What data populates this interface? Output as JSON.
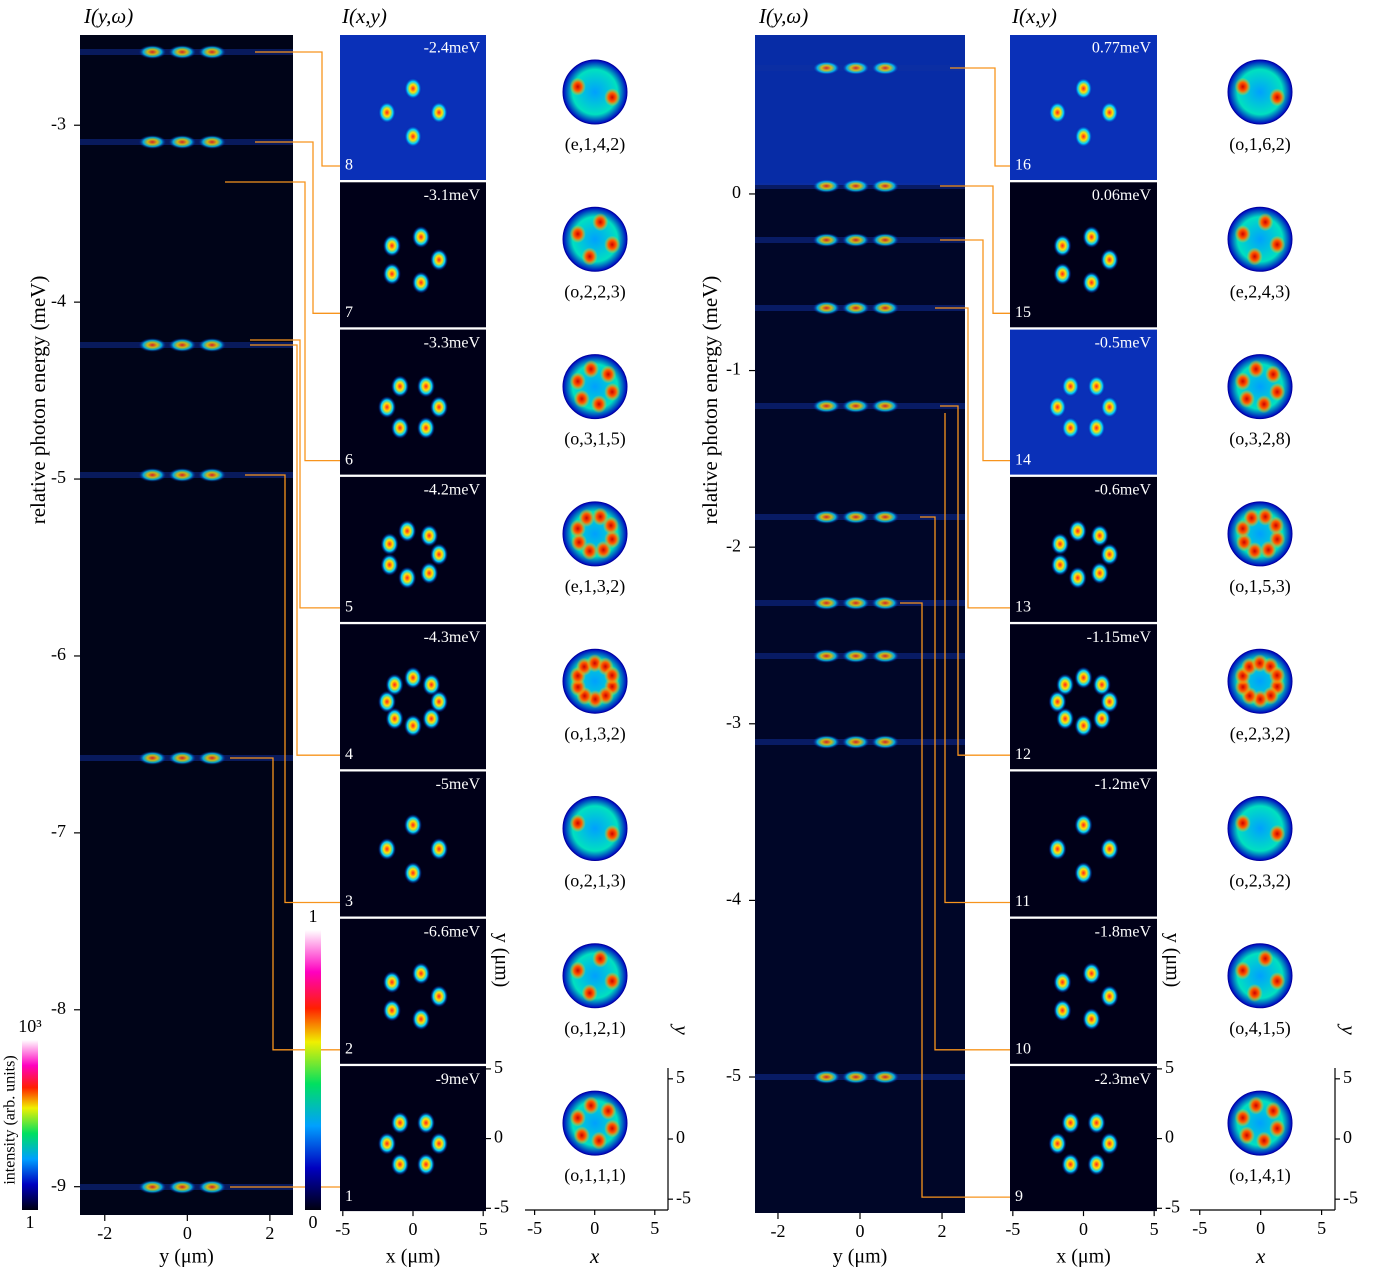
{
  "groups": [
    {
      "spectrum_title": "I(y,ω)",
      "image_title": "I(x,y)",
      "y_label": "relative photon energy (meV)",
      "ylim": [
        -9.16,
        -2.49
      ],
      "yticks": [
        -3,
        -4,
        -5,
        -6,
        -7,
        -8,
        -9
      ],
      "x_label": "y (μm)",
      "xlim": [
        -2.6,
        2.56
      ],
      "xticks": [
        -2,
        0,
        2
      ],
      "image_x_label": "x (μm)",
      "image_xlim": [
        -5.2,
        5.2
      ],
      "image_xticks": [
        -5,
        0,
        5
      ],
      "image_y_label": "y (μm)",
      "image_ylim": [
        -5.2,
        5.2
      ],
      "image_yticks": [
        5,
        0,
        -5
      ],
      "model_x_label": "x",
      "model_xlim": [
        -5.8,
        6.1
      ],
      "model_xticks": [
        -5,
        0,
        5
      ],
      "model_y_label": "y",
      "model_ylim": [
        -5.9,
        5.9
      ],
      "model_yticks": [
        5,
        0,
        -5
      ],
      "modes": [
        {
          "number": "8",
          "energy": "-2.4meV",
          "state": "(e,1,4,2)"
        },
        {
          "number": "7",
          "energy": "-3.1meV",
          "state": "(o,2,2,3)"
        },
        {
          "number": "6",
          "energy": "-3.3meV",
          "state": "(o,3,1,5)"
        },
        {
          "number": "5",
          "energy": "-4.2meV",
          "state": "(e,1,3,2)"
        },
        {
          "number": "4",
          "energy": "-4.3meV",
          "state": "(o,1,3,2)"
        },
        {
          "number": "3",
          "energy": "-5meV",
          "state": "(o,2,1,3)"
        },
        {
          "number": "2",
          "energy": "-6.6meV",
          "state": "(o,1,2,1)"
        },
        {
          "number": "1",
          "energy": "-9meV",
          "state": "(o,1,1,1)"
        }
      ]
    },
    {
      "spectrum_title": "I(y,ω)",
      "image_title": "I(x,y)",
      "y_label": "relative photon energy (meV)",
      "ylim": [
        -5.77,
        0.9
      ],
      "yticks": [
        0,
        -1,
        -2,
        -3,
        -4,
        -5
      ],
      "x_label": "y (μm)",
      "xlim": [
        -2.56,
        2.56
      ],
      "xticks": [
        -2,
        0,
        2
      ],
      "image_x_label": "x (μm)",
      "image_xlim": [
        -5.2,
        5.2
      ],
      "image_xticks": [
        -5,
        0,
        5
      ],
      "image_y_label": "y (μm)",
      "image_ylim": [
        -5.2,
        5.2
      ],
      "image_yticks": [
        5,
        0,
        -5
      ],
      "model_x_label": "x",
      "model_xlim": [
        -5.8,
        6.1
      ],
      "model_xticks": [
        -5,
        0,
        5
      ],
      "model_y_label": "y",
      "model_ylim": [
        -5.9,
        5.9
      ],
      "model_yticks": [
        5,
        0,
        -5
      ],
      "modes": [
        {
          "number": "16",
          "energy": "0.77meV",
          "state": "(o,1,6,2)"
        },
        {
          "number": "15",
          "energy": "0.06meV",
          "state": "(e,2,4,3)"
        },
        {
          "number": "14",
          "energy": "-0.5meV",
          "state": "(o,3,2,8)"
        },
        {
          "number": "13",
          "energy": "-0.6meV",
          "state": "(o,1,5,3)"
        },
        {
          "number": "12",
          "energy": "-1.15meV",
          "state": "(e,2,3,2)"
        },
        {
          "number": "11",
          "energy": "-1.2meV",
          "state": "(o,2,3,2)"
        },
        {
          "number": "10",
          "energy": "-1.8meV",
          "state": "(o,4,1,5)"
        },
        {
          "number": "9",
          "energy": "-2.3meV",
          "state": "(o,1,4,1)"
        }
      ]
    }
  ],
  "colorbars": [
    {
      "label": "intensity (arb. units)",
      "max": "10³",
      "min": "1"
    },
    {
      "max": "1",
      "min": "0"
    }
  ]
}
